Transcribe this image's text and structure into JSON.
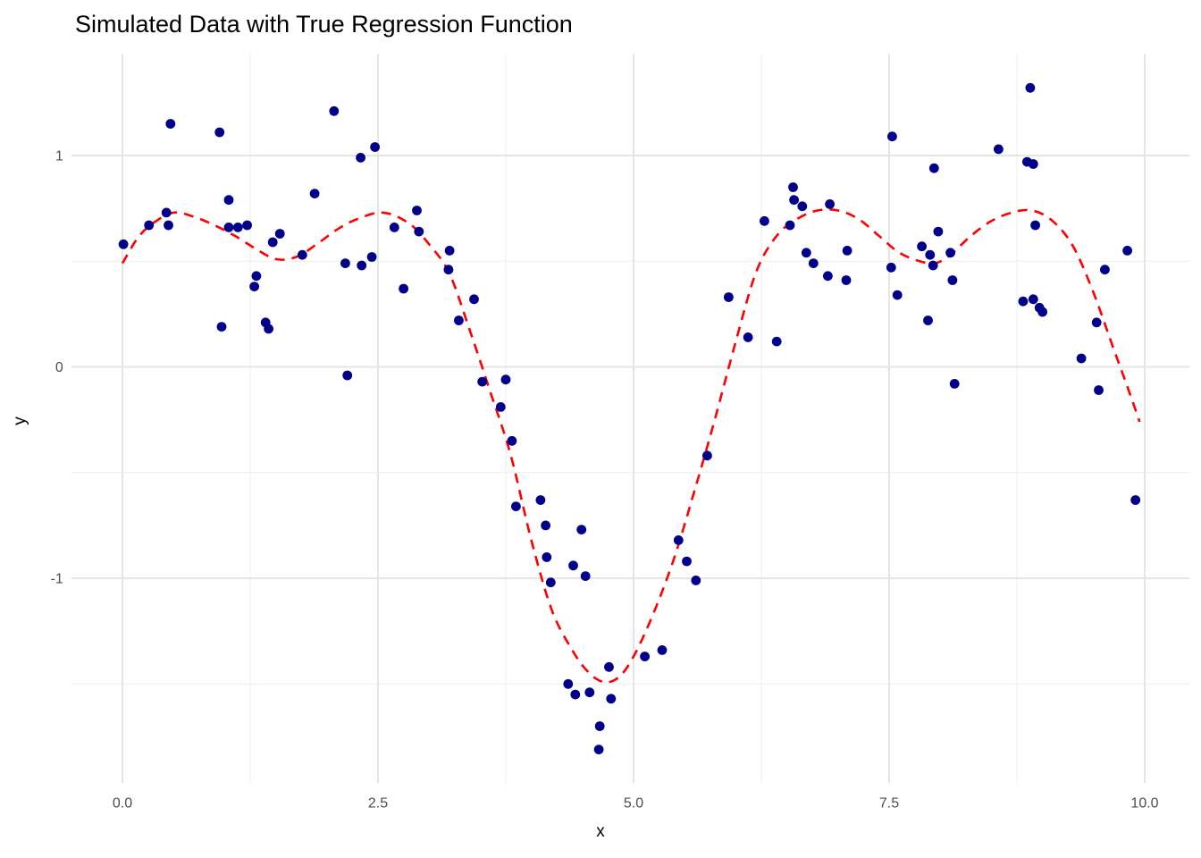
{
  "figure": {
    "title": "Simulated Data with True Regression Function",
    "x_axis_label": "x",
    "y_axis_label": "y"
  },
  "chart_data": {
    "type": "scatter",
    "title": "Simulated Data with True Regression Function",
    "xlabel": "x",
    "ylabel": "y",
    "grid": true,
    "legend_position": "none",
    "xlim": [
      -0.5,
      10.44
    ],
    "ylim": [
      -1.97,
      1.48
    ],
    "x_ticks": {
      "values": [
        0,
        2.5,
        5,
        7.5,
        10
      ],
      "labels": [
        "0.0",
        "2.5",
        "5.0",
        "7.5",
        "10.0"
      ]
    },
    "y_ticks": {
      "values": [
        1,
        0,
        -1
      ],
      "labels": [
        "1",
        "0",
        "-1"
      ]
    },
    "x_minor_ticks": [
      1.25,
      3.75,
      6.25,
      8.75
    ],
    "y_minor_ticks": [
      0.5,
      -0.5,
      -1.5
    ],
    "series": [
      {
        "name": "simulated data points",
        "kind": "scatter",
        "color": "#00008B",
        "marker_radius": 5.4,
        "points": [
          [
            0.01,
            0.58
          ],
          [
            0.26,
            0.67
          ],
          [
            0.43,
            0.73
          ],
          [
            0.45,
            0.67
          ],
          [
            0.47,
            1.15
          ],
          [
            0.95,
            1.11
          ],
          [
            0.97,
            0.19
          ],
          [
            1.04,
            0.79
          ],
          [
            1.04,
            0.66
          ],
          [
            1.13,
            0.66
          ],
          [
            1.22,
            0.67
          ],
          [
            1.29,
            0.38
          ],
          [
            1.31,
            0.43
          ],
          [
            1.4,
            0.21
          ],
          [
            1.43,
            0.18
          ],
          [
            1.47,
            0.59
          ],
          [
            1.54,
            0.63
          ],
          [
            1.76,
            0.53
          ],
          [
            1.88,
            0.82
          ],
          [
            2.07,
            1.21
          ],
          [
            2.18,
            0.49
          ],
          [
            2.2,
            -0.04
          ],
          [
            2.33,
            0.99
          ],
          [
            2.34,
            0.48
          ],
          [
            2.44,
            0.52
          ],
          [
            2.47,
            1.04
          ],
          [
            2.66,
            0.66
          ],
          [
            2.75,
            0.37
          ],
          [
            2.88,
            0.74
          ],
          [
            2.9,
            0.64
          ],
          [
            3.19,
            0.46
          ],
          [
            3.2,
            0.55
          ],
          [
            3.29,
            0.22
          ],
          [
            3.44,
            0.32
          ],
          [
            3.52,
            -0.07
          ],
          [
            3.7,
            -0.19
          ],
          [
            3.75,
            -0.06
          ],
          [
            3.81,
            -0.35
          ],
          [
            3.85,
            -0.66
          ],
          [
            4.09,
            -0.63
          ],
          [
            4.14,
            -0.75
          ],
          [
            4.15,
            -0.9
          ],
          [
            4.19,
            -1.02
          ],
          [
            4.36,
            -1.5
          ],
          [
            4.41,
            -0.94
          ],
          [
            4.43,
            -1.55
          ],
          [
            4.49,
            -0.77
          ],
          [
            4.53,
            -0.99
          ],
          [
            4.57,
            -1.54
          ],
          [
            4.66,
            -1.81
          ],
          [
            4.67,
            -1.7
          ],
          [
            4.76,
            -1.42
          ],
          [
            4.78,
            -1.57
          ],
          [
            5.11,
            -1.37
          ],
          [
            5.28,
            -1.34
          ],
          [
            5.44,
            -0.82
          ],
          [
            5.52,
            -0.92
          ],
          [
            5.61,
            -1.01
          ],
          [
            5.72,
            -0.42
          ],
          [
            5.93,
            0.33
          ],
          [
            6.12,
            0.14
          ],
          [
            6.28,
            0.69
          ],
          [
            6.4,
            0.12
          ],
          [
            6.53,
            0.67
          ],
          [
            6.56,
            0.85
          ],
          [
            6.57,
            0.79
          ],
          [
            6.65,
            0.76
          ],
          [
            6.69,
            0.54
          ],
          [
            6.76,
            0.49
          ],
          [
            6.9,
            0.43
          ],
          [
            6.92,
            0.77
          ],
          [
            7.08,
            0.41
          ],
          [
            7.09,
            0.55
          ],
          [
            7.52,
            0.47
          ],
          [
            7.53,
            1.09
          ],
          [
            7.58,
            0.34
          ],
          [
            7.82,
            0.57
          ],
          [
            7.88,
            0.22
          ],
          [
            7.9,
            0.53
          ],
          [
            7.93,
            0.48
          ],
          [
            7.94,
            0.94
          ],
          [
            7.98,
            0.64
          ],
          [
            8.1,
            0.54
          ],
          [
            8.12,
            0.41
          ],
          [
            8.14,
            -0.08
          ],
          [
            8.57,
            1.03
          ],
          [
            8.81,
            0.31
          ],
          [
            8.85,
            0.97
          ],
          [
            8.88,
            1.32
          ],
          [
            8.91,
            0.96
          ],
          [
            8.91,
            0.32
          ],
          [
            8.93,
            0.67
          ],
          [
            8.97,
            0.28
          ],
          [
            9.0,
            0.26
          ],
          [
            9.38,
            0.04
          ],
          [
            9.53,
            0.21
          ],
          [
            9.55,
            -0.11
          ],
          [
            9.61,
            0.46
          ],
          [
            9.83,
            0.55
          ],
          [
            9.91,
            -0.63
          ]
        ]
      },
      {
        "name": "true regression function",
        "kind": "line",
        "line_style": "dashed",
        "color": "#FF0000",
        "line_width": 2.6,
        "points": [
          [
            0.0,
            0.49
          ],
          [
            0.15,
            0.61
          ],
          [
            0.3,
            0.68
          ],
          [
            0.5,
            0.73
          ],
          [
            0.7,
            0.71
          ],
          [
            0.9,
            0.67
          ],
          [
            1.1,
            0.62
          ],
          [
            1.3,
            0.56
          ],
          [
            1.5,
            0.51
          ],
          [
            1.7,
            0.52
          ],
          [
            1.9,
            0.58
          ],
          [
            2.1,
            0.65
          ],
          [
            2.3,
            0.7
          ],
          [
            2.55,
            0.73
          ],
          [
            2.8,
            0.68
          ],
          [
            3.0,
            0.58
          ],
          [
            3.2,
            0.44
          ],
          [
            3.4,
            0.17
          ],
          [
            3.6,
            -0.12
          ],
          [
            3.8,
            -0.42
          ],
          [
            4.0,
            -0.82
          ],
          [
            4.2,
            -1.15
          ],
          [
            4.4,
            -1.34
          ],
          [
            4.55,
            -1.44
          ],
          [
            4.7,
            -1.49
          ],
          [
            4.85,
            -1.47
          ],
          [
            5.0,
            -1.37
          ],
          [
            5.2,
            -1.16
          ],
          [
            5.4,
            -0.9
          ],
          [
            5.6,
            -0.58
          ],
          [
            5.8,
            -0.24
          ],
          [
            6.0,
            0.12
          ],
          [
            6.2,
            0.45
          ],
          [
            6.4,
            0.62
          ],
          [
            6.6,
            0.7
          ],
          [
            6.8,
            0.74
          ],
          [
            7.0,
            0.74
          ],
          [
            7.2,
            0.7
          ],
          [
            7.4,
            0.62
          ],
          [
            7.6,
            0.54
          ],
          [
            7.8,
            0.5
          ],
          [
            7.95,
            0.49
          ],
          [
            8.1,
            0.53
          ],
          [
            8.3,
            0.62
          ],
          [
            8.5,
            0.69
          ],
          [
            8.7,
            0.73
          ],
          [
            8.9,
            0.74
          ],
          [
            9.1,
            0.69
          ],
          [
            9.3,
            0.57
          ],
          [
            9.5,
            0.35
          ],
          [
            9.7,
            0.08
          ],
          [
            9.85,
            -0.12
          ],
          [
            9.95,
            -0.26
          ]
        ]
      }
    ],
    "style": {
      "background": "#FFFFFF",
      "grid_major_color": "#E5E5E5",
      "grid_minor_color": "#F0F0F0",
      "tick_label_color": "#4D4D4D",
      "axis_title_color": "#000000",
      "title_color": "#000000",
      "point_color": "#00008B",
      "curve_color": "#FF0000"
    }
  }
}
